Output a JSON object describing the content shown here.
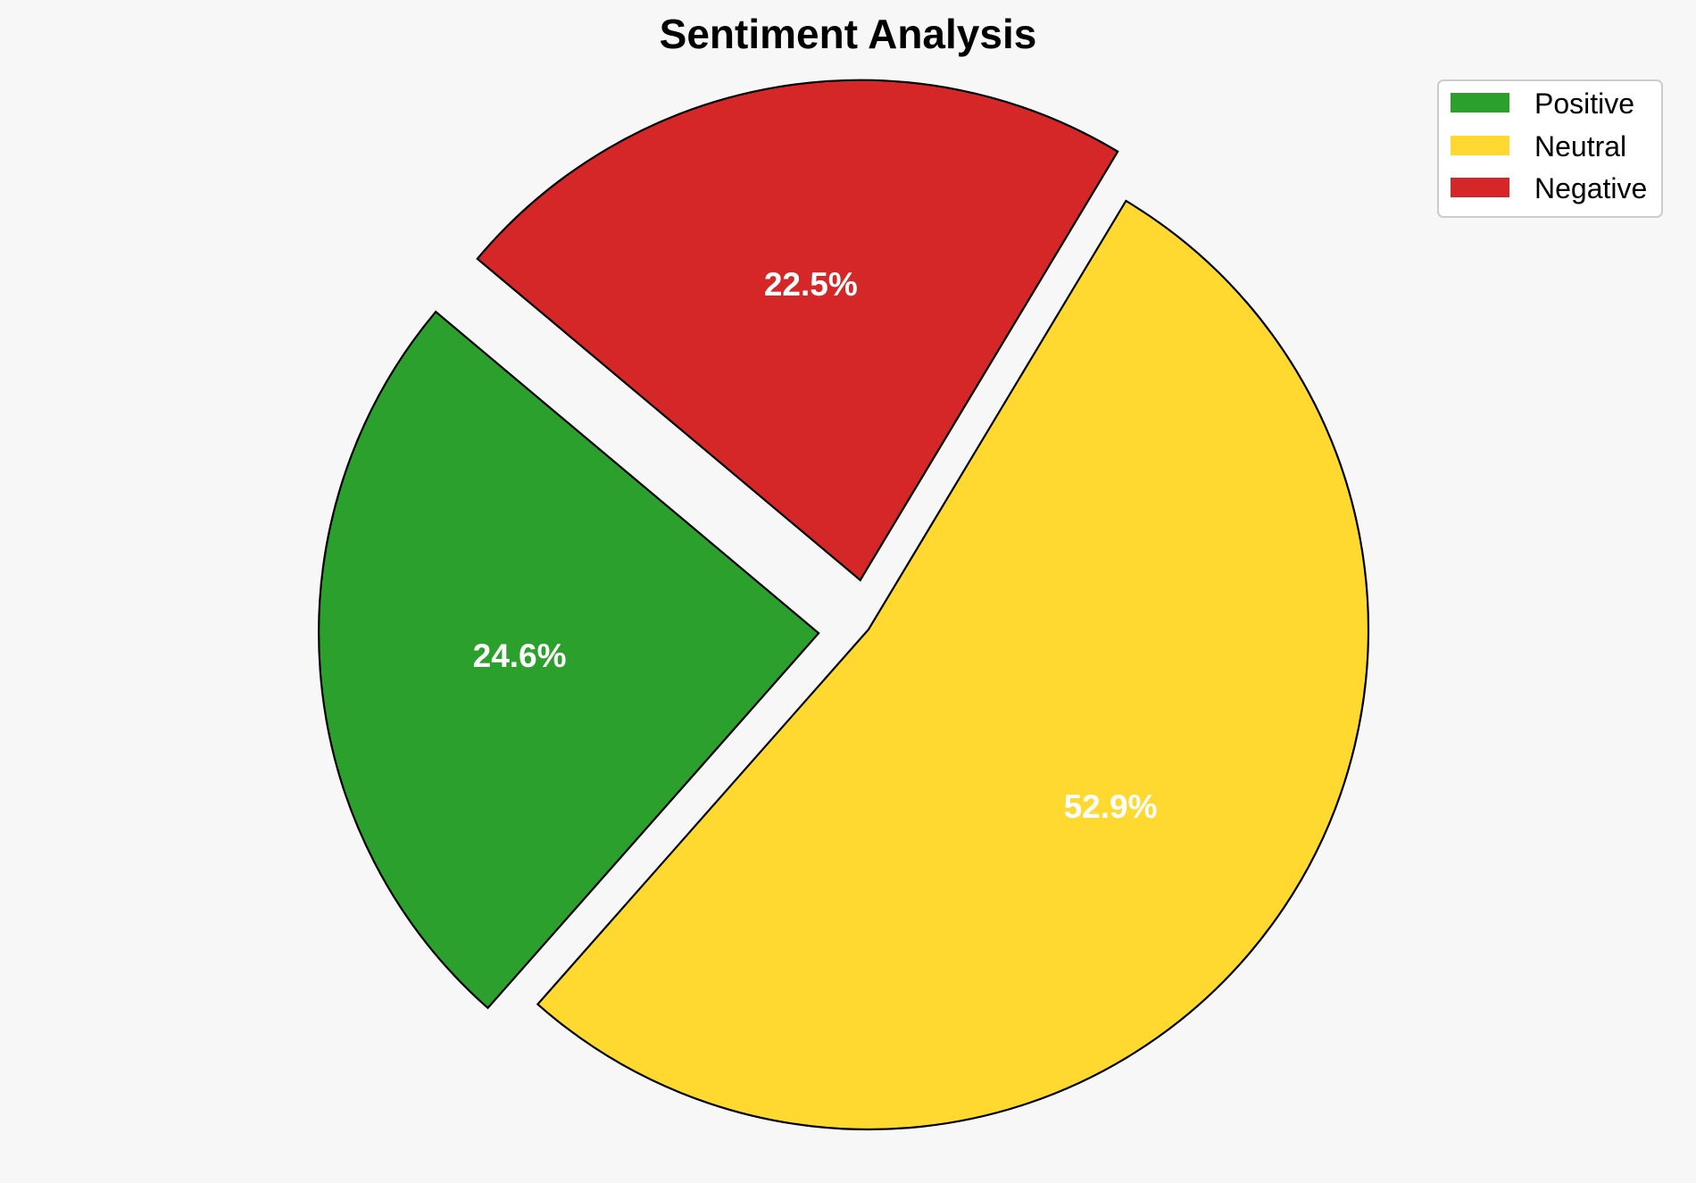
{
  "chart_data": {
    "type": "pie",
    "title": "Sentiment Analysis",
    "categories": [
      "Positive",
      "Neutral",
      "Negative"
    ],
    "values": [
      24.6,
      52.9,
      22.5
    ],
    "value_labels": [
      "24.6%",
      "52.9%",
      "22.5%"
    ],
    "colors": [
      "#2ca02c",
      "#ffd92f",
      "#d62728"
    ],
    "exploded": [
      true,
      false,
      true
    ],
    "legend_placement": "top-right",
    "slice_edge_color": "#000000",
    "label_color": "#ffffff"
  }
}
